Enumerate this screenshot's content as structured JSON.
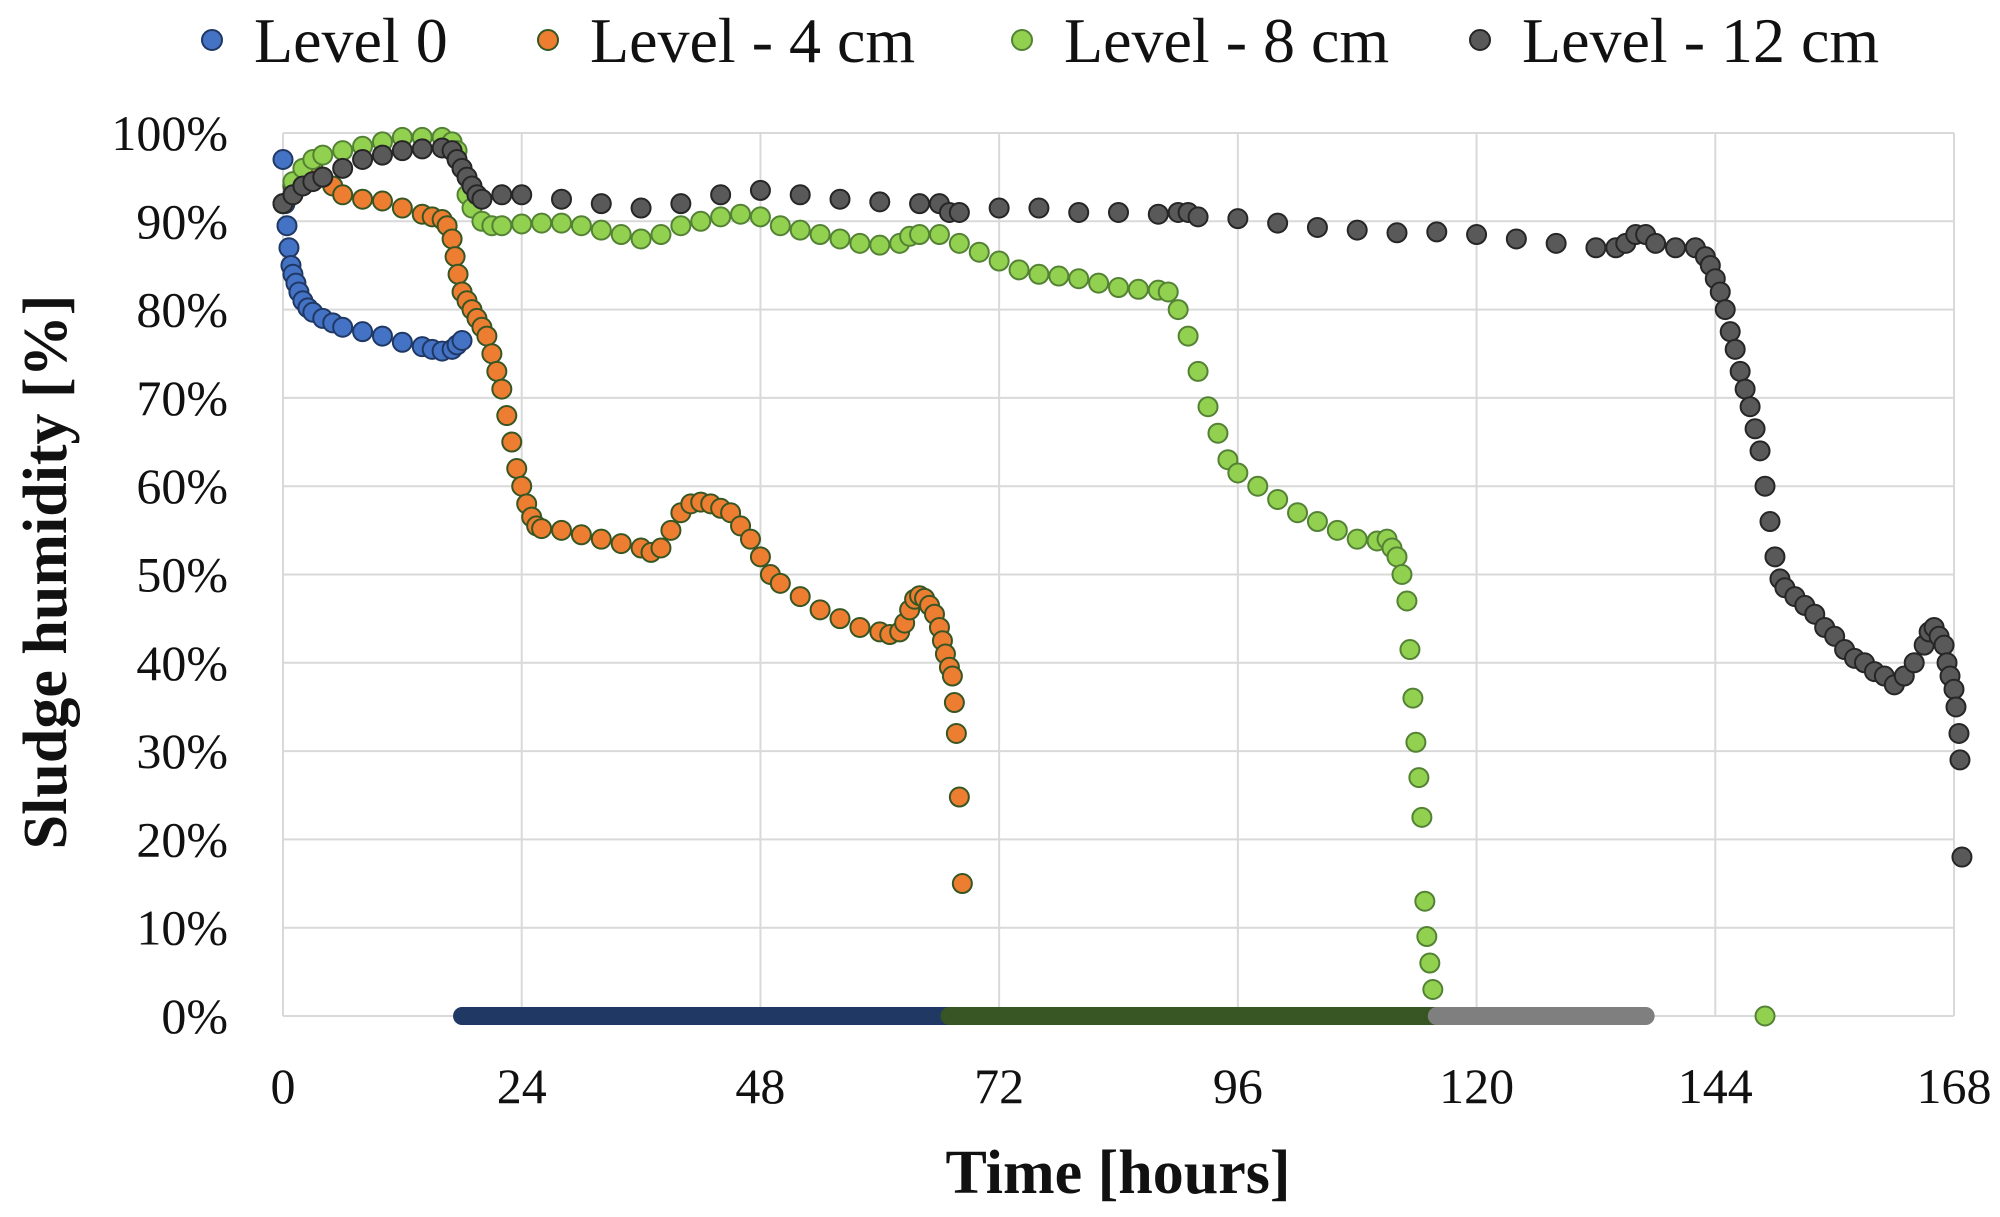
{
  "chart_data": {
    "type": "scatter",
    "xlabel": "Time [hours]",
    "ylabel": "Sludge humidity [%]",
    "xlim": [
      0,
      168
    ],
    "ylim": [
      0,
      100
    ],
    "x_ticks": [
      0,
      24,
      48,
      72,
      96,
      120,
      144,
      168
    ],
    "y_ticks": [
      0,
      10,
      20,
      30,
      40,
      50,
      60,
      70,
      80,
      90,
      100
    ],
    "y_tick_labels": [
      "0%",
      "10%",
      "20%",
      "30%",
      "40%",
      "50%",
      "60%",
      "70%",
      "80%",
      "90%",
      "100%"
    ],
    "grid": true,
    "legend_position": "top",
    "series": [
      {
        "name": "Level 0",
        "color": "#4472c4",
        "edge": "#1f3864",
        "points": [
          [
            0,
            97
          ],
          [
            0.2,
            92
          ],
          [
            0.4,
            89.5
          ],
          [
            0.6,
            87
          ],
          [
            0.8,
            85
          ],
          [
            1,
            84
          ],
          [
            1.3,
            83
          ],
          [
            1.6,
            82
          ],
          [
            2,
            81
          ],
          [
            2.5,
            80.2
          ],
          [
            3,
            79.7
          ],
          [
            4,
            79
          ],
          [
            5,
            78.5
          ],
          [
            6,
            78
          ],
          [
            8,
            77.5
          ],
          [
            10,
            77
          ],
          [
            12,
            76.3
          ],
          [
            14,
            75.8
          ],
          [
            15,
            75.5
          ],
          [
            16,
            75.3
          ],
          [
            17,
            75.5
          ],
          [
            17.5,
            76
          ],
          [
            18,
            76.5
          ]
        ],
        "baseline": {
          "x_start": 18,
          "x_end": 67,
          "value": 0,
          "color": "#1f3864"
        }
      },
      {
        "name": "Level - 4 cm",
        "color": "#ed7d31",
        "edge": "#375623",
        "points": [
          [
            0,
            92
          ],
          [
            1,
            94
          ],
          [
            2,
            95.5
          ],
          [
            3,
            96
          ],
          [
            4,
            95
          ],
          [
            5,
            94
          ],
          [
            6,
            93
          ],
          [
            8,
            92.5
          ],
          [
            10,
            92.3
          ],
          [
            12,
            91.5
          ],
          [
            14,
            90.8
          ],
          [
            15,
            90.5
          ],
          [
            16,
            90.2
          ],
          [
            16.5,
            89.5
          ],
          [
            17,
            88
          ],
          [
            17.3,
            86
          ],
          [
            17.6,
            84
          ],
          [
            18,
            82
          ],
          [
            18.5,
            81
          ],
          [
            19,
            80
          ],
          [
            19.5,
            79
          ],
          [
            20,
            78
          ],
          [
            20.5,
            77
          ],
          [
            21,
            75
          ],
          [
            21.5,
            73
          ],
          [
            22,
            71
          ],
          [
            22.5,
            68
          ],
          [
            23,
            65
          ],
          [
            23.5,
            62
          ],
          [
            24,
            60
          ],
          [
            24.5,
            58
          ],
          [
            25,
            56.5
          ],
          [
            25.5,
            55.5
          ],
          [
            26,
            55.2
          ],
          [
            28,
            55
          ],
          [
            30,
            54.5
          ],
          [
            32,
            54
          ],
          [
            34,
            53.5
          ],
          [
            36,
            53
          ],
          [
            37,
            52.5
          ],
          [
            38,
            53
          ],
          [
            39,
            55
          ],
          [
            40,
            57
          ],
          [
            41,
            58
          ],
          [
            42,
            58.2
          ],
          [
            43,
            58
          ],
          [
            44,
            57.5
          ],
          [
            45,
            57
          ],
          [
            46,
            55.5
          ],
          [
            47,
            54
          ],
          [
            48,
            52
          ],
          [
            49,
            50
          ],
          [
            50,
            49
          ],
          [
            52,
            47.5
          ],
          [
            54,
            46
          ],
          [
            56,
            45
          ],
          [
            58,
            44
          ],
          [
            60,
            43.5
          ],
          [
            61,
            43.2
          ],
          [
            62,
            43.5
          ],
          [
            62.5,
            44.5
          ],
          [
            63,
            46
          ],
          [
            63.5,
            47.2
          ],
          [
            64,
            47.6
          ],
          [
            64.5,
            47.3
          ],
          [
            65,
            46.5
          ],
          [
            65.5,
            45.5
          ],
          [
            66,
            44
          ],
          [
            66.3,
            42.5
          ],
          [
            66.6,
            41
          ],
          [
            67,
            39.5
          ],
          [
            67.3,
            38.5
          ],
          [
            67.5,
            35.5
          ],
          [
            67.7,
            32
          ],
          [
            68,
            24.8
          ],
          [
            68.3,
            15
          ]
        ],
        "baseline": null
      },
      {
        "name": "Level - 8 cm",
        "color": "#92d050",
        "edge": "#548235",
        "points": [
          [
            0,
            92
          ],
          [
            1,
            94.5
          ],
          [
            2,
            96
          ],
          [
            3,
            97
          ],
          [
            4,
            97.5
          ],
          [
            6,
            98
          ],
          [
            8,
            98.5
          ],
          [
            10,
            99
          ],
          [
            12,
            99.5
          ],
          [
            14,
            99.5
          ],
          [
            16,
            99.5
          ],
          [
            17,
            99
          ],
          [
            17.5,
            98
          ],
          [
            18,
            96
          ],
          [
            18.5,
            93
          ],
          [
            19,
            91.5
          ],
          [
            20,
            90
          ],
          [
            21,
            89.5
          ],
          [
            22,
            89.5
          ],
          [
            24,
            89.7
          ],
          [
            26,
            89.8
          ],
          [
            28,
            89.8
          ],
          [
            30,
            89.5
          ],
          [
            32,
            89
          ],
          [
            34,
            88.5
          ],
          [
            36,
            88
          ],
          [
            38,
            88.5
          ],
          [
            40,
            89.5
          ],
          [
            42,
            90
          ],
          [
            44,
            90.5
          ],
          [
            46,
            90.8
          ],
          [
            48,
            90.5
          ],
          [
            50,
            89.5
          ],
          [
            52,
            89
          ],
          [
            54,
            88.5
          ],
          [
            56,
            88
          ],
          [
            58,
            87.5
          ],
          [
            60,
            87.3
          ],
          [
            62,
            87.5
          ],
          [
            63,
            88.3
          ],
          [
            64,
            88.5
          ],
          [
            66,
            88.5
          ],
          [
            68,
            87.5
          ],
          [
            70,
            86.5
          ],
          [
            72,
            85.5
          ],
          [
            74,
            84.5
          ],
          [
            76,
            84
          ],
          [
            78,
            83.8
          ],
          [
            80,
            83.5
          ],
          [
            82,
            83
          ],
          [
            84,
            82.5
          ],
          [
            86,
            82.3
          ],
          [
            88,
            82.2
          ],
          [
            89,
            82
          ],
          [
            90,
            80
          ],
          [
            91,
            77
          ],
          [
            92,
            73
          ],
          [
            93,
            69
          ],
          [
            94,
            66
          ],
          [
            95,
            63
          ],
          [
            96,
            61.5
          ],
          [
            98,
            60
          ],
          [
            100,
            58.5
          ],
          [
            102,
            57
          ],
          [
            104,
            56
          ],
          [
            106,
            55
          ],
          [
            108,
            54
          ],
          [
            110,
            53.8
          ],
          [
            111,
            54
          ],
          [
            111.5,
            53
          ],
          [
            112,
            52
          ],
          [
            112.5,
            50
          ],
          [
            113,
            47
          ],
          [
            113.3,
            41.5
          ],
          [
            113.6,
            36
          ],
          [
            113.9,
            31
          ],
          [
            114.2,
            27
          ],
          [
            114.5,
            22.5
          ],
          [
            114.8,
            13
          ],
          [
            115,
            9
          ],
          [
            115.3,
            6
          ],
          [
            115.6,
            3
          ],
          [
            149,
            0
          ]
        ],
        "baseline": {
          "x_start": 67,
          "x_end": 116,
          "value": 0,
          "color": "#375623"
        }
      },
      {
        "name": "Level - 12 cm",
        "color": "#595959",
        "edge": "#262626",
        "points": [
          [
            0,
            92
          ],
          [
            1,
            93
          ],
          [
            2,
            94
          ],
          [
            3,
            94.5
          ],
          [
            4,
            95
          ],
          [
            6,
            96
          ],
          [
            8,
            97
          ],
          [
            10,
            97.5
          ],
          [
            12,
            98
          ],
          [
            14,
            98.2
          ],
          [
            16,
            98.3
          ],
          [
            17,
            98
          ],
          [
            17.5,
            97
          ],
          [
            18,
            96
          ],
          [
            18.5,
            95
          ],
          [
            19,
            94
          ],
          [
            19.5,
            93
          ],
          [
            20,
            92.5
          ],
          [
            22,
            93
          ],
          [
            24,
            93
          ],
          [
            28,
            92.5
          ],
          [
            32,
            92
          ],
          [
            36,
            91.5
          ],
          [
            40,
            92
          ],
          [
            44,
            93
          ],
          [
            48,
            93.5
          ],
          [
            52,
            93
          ],
          [
            56,
            92.5
          ],
          [
            60,
            92.2
          ],
          [
            64,
            92
          ],
          [
            66,
            92
          ],
          [
            67,
            91
          ],
          [
            68,
            91
          ],
          [
            72,
            91.5
          ],
          [
            76,
            91.5
          ],
          [
            80,
            91
          ],
          [
            84,
            91
          ],
          [
            88,
            90.8
          ],
          [
            90,
            91
          ],
          [
            91,
            91
          ],
          [
            92,
            90.5
          ],
          [
            96,
            90.3
          ],
          [
            100,
            89.8
          ],
          [
            104,
            89.3
          ],
          [
            108,
            89
          ],
          [
            112,
            88.7
          ],
          [
            116,
            88.8
          ],
          [
            120,
            88.5
          ],
          [
            124,
            88
          ],
          [
            128,
            87.5
          ],
          [
            132,
            87
          ],
          [
            134,
            87
          ],
          [
            135,
            87.5
          ],
          [
            136,
            88.5
          ],
          [
            137,
            88.5
          ],
          [
            138,
            87.5
          ],
          [
            140,
            87
          ],
          [
            142,
            87
          ],
          [
            143,
            86
          ],
          [
            143.5,
            85
          ],
          [
            144,
            83.5
          ],
          [
            144.5,
            82
          ],
          [
            145,
            80
          ],
          [
            145.5,
            77.5
          ],
          [
            146,
            75.5
          ],
          [
            146.5,
            73
          ],
          [
            147,
            71
          ],
          [
            147.5,
            69
          ],
          [
            148,
            66.5
          ],
          [
            148.5,
            64
          ],
          [
            149,
            60
          ],
          [
            149.5,
            56
          ],
          [
            150,
            52
          ],
          [
            150.5,
            49.5
          ],
          [
            151,
            48.5
          ],
          [
            152,
            47.5
          ],
          [
            153,
            46.5
          ],
          [
            154,
            45.5
          ],
          [
            155,
            44
          ],
          [
            156,
            43
          ],
          [
            157,
            41.5
          ],
          [
            158,
            40.5
          ],
          [
            159,
            40
          ],
          [
            160,
            39
          ],
          [
            161,
            38.5
          ],
          [
            162,
            37.5
          ],
          [
            163,
            38.5
          ],
          [
            164,
            40
          ],
          [
            165,
            42
          ],
          [
            165.5,
            43.5
          ],
          [
            166,
            44
          ],
          [
            166.5,
            43
          ],
          [
            167,
            42
          ],
          [
            167.3,
            40
          ],
          [
            167.6,
            38.5
          ],
          [
            168,
            37
          ],
          [
            168.2,
            35
          ],
          [
            168.5,
            32
          ],
          [
            168.6,
            29
          ],
          [
            168.8,
            18
          ]
        ],
        "baseline": {
          "x_start": 116,
          "x_end": 137,
          "value": 0,
          "color": "#7f7f7f"
        }
      }
    ]
  }
}
